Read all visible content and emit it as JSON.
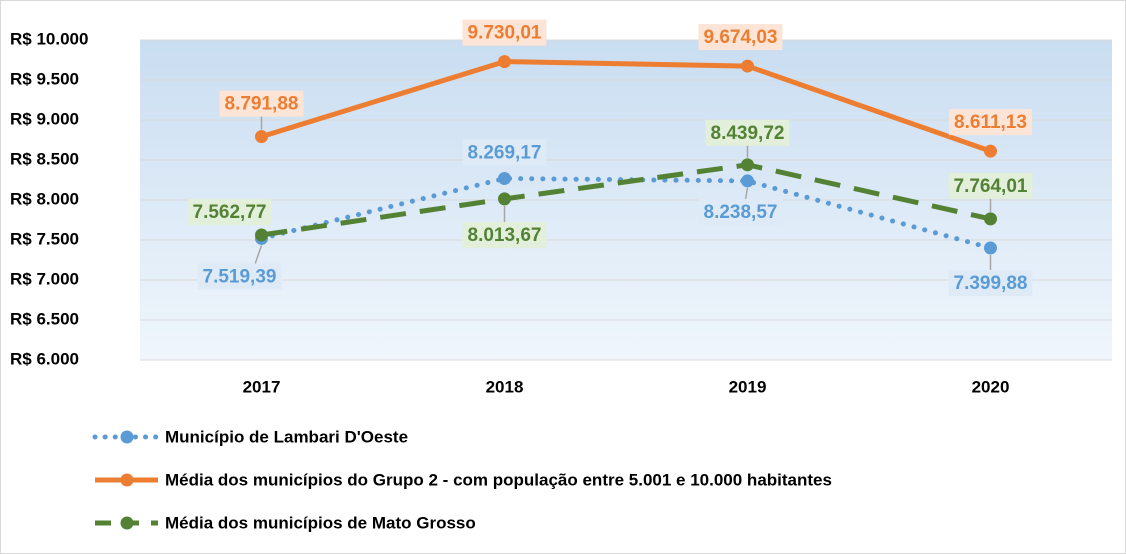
{
  "chart_data": {
    "type": "line",
    "categories": [
      "2017",
      "2018",
      "2019",
      "2020"
    ],
    "series": [
      {
        "name": "Município de Lambari D'Oeste",
        "color": "#5b9bd5",
        "style": "dotted",
        "values": [
          7519.39,
          8269.17,
          8238.57,
          7399.88
        ],
        "value_labels": [
          "7.519,39",
          "8.269,17",
          "8.238,57",
          "7.399,88"
        ]
      },
      {
        "name": "Média dos municípios do Grupo 2 - com população entre 5.001 e 10.000 habitantes",
        "color": "#ed7d31",
        "style": "solid",
        "values": [
          8791.88,
          9730.01,
          9674.03,
          8611.13
        ],
        "value_labels": [
          "8.791,88",
          "9.730,01",
          "9.674,03",
          "8.611,13"
        ]
      },
      {
        "name": "Média dos municípios de Mato Grosso",
        "color": "#548235",
        "style": "dashed",
        "values": [
          7562.77,
          8013.67,
          8439.72,
          7764.01
        ],
        "value_labels": [
          "7.562,77",
          "8.013,67",
          "8.439,72",
          "7.764,01"
        ]
      }
    ],
    "ylim": [
      6000,
      10000
    ],
    "yticks": [
      {
        "value": 6000,
        "label": "R$ 6.000"
      },
      {
        "value": 6500,
        "label": "R$ 6.500"
      },
      {
        "value": 7000,
        "label": "R$ 7.000"
      },
      {
        "value": 7500,
        "label": "R$ 7.500"
      },
      {
        "value": 8000,
        "label": "R$ 8.000"
      },
      {
        "value": 8500,
        "label": "R$ 8.500"
      },
      {
        "value": 9000,
        "label": "R$ 9.000"
      },
      {
        "value": 9500,
        "label": "R$ 9.500"
      },
      {
        "value": 10000,
        "label": "R$ 10.000"
      }
    ],
    "grid": true,
    "legend": "bottom"
  }
}
